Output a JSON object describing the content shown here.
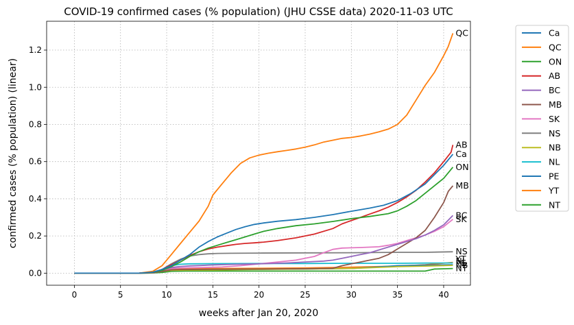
{
  "chart_data": {
    "type": "line",
    "title": "COVID-19 confirmed cases (% population) (JHU CSSE data) 2020-11-03 UTC",
    "xlabel": "weeks after Jan 20, 2020",
    "ylabel": "confirmed cases (% population) (linear)",
    "xlim": [
      -3,
      42.9
    ],
    "ylim": [
      -0.065,
      1.355
    ],
    "x_ticks": [
      0,
      5,
      10,
      15,
      20,
      25,
      30,
      35,
      40
    ],
    "y_ticks": [
      0.0,
      0.2,
      0.4,
      0.6,
      0.8,
      1.0,
      1.2
    ],
    "x_tick_labels": [
      "0",
      "5",
      "10",
      "15",
      "20",
      "25",
      "30",
      "35",
      "40"
    ],
    "y_tick_labels": [
      "0.0",
      "0.2",
      "0.4",
      "0.6",
      "0.8",
      "1.0",
      "1.2"
    ],
    "grid": true,
    "legend_position": "outside-right",
    "series": [
      {
        "name": "Ca",
        "color": "#1f77b4",
        "end_label": "Ca",
        "points": [
          [
            0,
            0
          ],
          [
            7,
            0
          ],
          [
            8.5,
            0.005
          ],
          [
            9.5,
            0.02
          ],
          [
            10.5,
            0.04
          ],
          [
            11.5,
            0.07
          ],
          [
            12.5,
            0.1
          ],
          [
            13.5,
            0.14
          ],
          [
            14.5,
            0.17
          ],
          [
            15.5,
            0.195
          ],
          [
            16.5,
            0.215
          ],
          [
            17.5,
            0.235
          ],
          [
            18.5,
            0.25
          ],
          [
            19.5,
            0.262
          ],
          [
            20.5,
            0.27
          ],
          [
            22,
            0.279
          ],
          [
            24,
            0.288
          ],
          [
            26,
            0.3
          ],
          [
            28,
            0.315
          ],
          [
            30,
            0.333
          ],
          [
            32,
            0.35
          ],
          [
            33.5,
            0.365
          ],
          [
            35,
            0.39
          ],
          [
            36.5,
            0.43
          ],
          [
            38,
            0.48
          ],
          [
            39,
            0.53
          ],
          [
            40,
            0.58
          ],
          [
            41,
            0.64
          ]
        ]
      },
      {
        "name": "QC",
        "color": "#ff7f0e",
        "end_label": "QC",
        "points": [
          [
            0,
            0
          ],
          [
            7,
            0
          ],
          [
            8.5,
            0.01
          ],
          [
            9.5,
            0.04
          ],
          [
            10.5,
            0.1
          ],
          [
            11.5,
            0.16
          ],
          [
            12.5,
            0.22
          ],
          [
            13.5,
            0.28
          ],
          [
            14.5,
            0.36
          ],
          [
            15,
            0.42
          ],
          [
            16,
            0.48
          ],
          [
            17,
            0.54
          ],
          [
            18,
            0.59
          ],
          [
            19,
            0.62
          ],
          [
            20,
            0.635
          ],
          [
            21,
            0.645
          ],
          [
            22,
            0.653
          ],
          [
            23,
            0.66
          ],
          [
            24,
            0.668
          ],
          [
            25,
            0.678
          ],
          [
            26,
            0.69
          ],
          [
            27,
            0.705
          ],
          [
            28,
            0.715
          ],
          [
            29,
            0.725
          ],
          [
            30,
            0.73
          ],
          [
            31,
            0.738
          ],
          [
            32,
            0.748
          ],
          [
            33,
            0.76
          ],
          [
            34,
            0.775
          ],
          [
            35,
            0.8
          ],
          [
            36,
            0.85
          ],
          [
            37,
            0.93
          ],
          [
            38,
            1.01
          ],
          [
            39,
            1.08
          ],
          [
            40,
            1.17
          ],
          [
            40.5,
            1.22
          ],
          [
            41,
            1.29
          ]
        ]
      },
      {
        "name": "ON",
        "color": "#2ca02c",
        "end_label": "ON",
        "points": [
          [
            0,
            0
          ],
          [
            7,
            0
          ],
          [
            8.5,
            0.004
          ],
          [
            9.5,
            0.015
          ],
          [
            10.5,
            0.035
          ],
          [
            11.5,
            0.06
          ],
          [
            12.5,
            0.09
          ],
          [
            13.5,
            0.115
          ],
          [
            14.5,
            0.135
          ],
          [
            15.5,
            0.15
          ],
          [
            16.5,
            0.165
          ],
          [
            17.5,
            0.18
          ],
          [
            18.5,
            0.195
          ],
          [
            19.5,
            0.21
          ],
          [
            20.5,
            0.225
          ],
          [
            22,
            0.24
          ],
          [
            24,
            0.255
          ],
          [
            26,
            0.265
          ],
          [
            28,
            0.278
          ],
          [
            30,
            0.293
          ],
          [
            32,
            0.305
          ],
          [
            34,
            0.32
          ],
          [
            35,
            0.335
          ],
          [
            36,
            0.36
          ],
          [
            37,
            0.39
          ],
          [
            38,
            0.43
          ],
          [
            39,
            0.47
          ],
          [
            40,
            0.51
          ],
          [
            41,
            0.57
          ]
        ]
      },
      {
        "name": "AB",
        "color": "#d62728",
        "end_label": "AB",
        "points": [
          [
            0,
            0
          ],
          [
            7,
            0
          ],
          [
            8.5,
            0.004
          ],
          [
            9.5,
            0.02
          ],
          [
            10.5,
            0.045
          ],
          [
            11.5,
            0.07
          ],
          [
            12.5,
            0.095
          ],
          [
            13.5,
            0.115
          ],
          [
            14.5,
            0.13
          ],
          [
            15.5,
            0.14
          ],
          [
            16.5,
            0.148
          ],
          [
            17.5,
            0.155
          ],
          [
            18.5,
            0.16
          ],
          [
            19.5,
            0.163
          ],
          [
            20.5,
            0.167
          ],
          [
            22,
            0.175
          ],
          [
            24,
            0.19
          ],
          [
            26,
            0.21
          ],
          [
            28,
            0.24
          ],
          [
            29,
            0.265
          ],
          [
            30,
            0.283
          ],
          [
            31,
            0.3
          ],
          [
            32,
            0.318
          ],
          [
            33,
            0.335
          ],
          [
            34,
            0.355
          ],
          [
            35,
            0.38
          ],
          [
            36,
            0.41
          ],
          [
            37,
            0.445
          ],
          [
            38,
            0.49
          ],
          [
            39,
            0.54
          ],
          [
            40,
            0.6
          ],
          [
            40.8,
            0.65
          ],
          [
            41,
            0.69
          ]
        ]
      },
      {
        "name": "BC",
        "color": "#9467bd",
        "end_label": "BC",
        "points": [
          [
            0,
            0
          ],
          [
            7,
            0
          ],
          [
            8.5,
            0.005
          ],
          [
            9.5,
            0.02
          ],
          [
            10.5,
            0.03
          ],
          [
            11.5,
            0.036
          ],
          [
            12.5,
            0.039
          ],
          [
            13.5,
            0.041
          ],
          [
            14.5,
            0.043
          ],
          [
            15.5,
            0.045
          ],
          [
            17,
            0.047
          ],
          [
            20,
            0.05
          ],
          [
            23,
            0.055
          ],
          [
            25,
            0.06
          ],
          [
            27,
            0.065
          ],
          [
            28,
            0.07
          ],
          [
            29,
            0.08
          ],
          [
            30,
            0.09
          ],
          [
            31,
            0.1
          ],
          [
            32,
            0.11
          ],
          [
            33,
            0.125
          ],
          [
            34,
            0.14
          ],
          [
            35,
            0.155
          ],
          [
            36,
            0.17
          ],
          [
            37,
            0.185
          ],
          [
            38,
            0.205
          ],
          [
            39,
            0.23
          ],
          [
            40,
            0.26
          ],
          [
            41,
            0.31
          ]
        ]
      },
      {
        "name": "MB",
        "color": "#8c564b",
        "end_label": "MB",
        "points": [
          [
            0,
            0
          ],
          [
            7,
            0
          ],
          [
            8.5,
            0.002
          ],
          [
            9.5,
            0.01
          ],
          [
            10.5,
            0.018
          ],
          [
            12,
            0.02
          ],
          [
            15,
            0.021
          ],
          [
            20,
            0.022
          ],
          [
            25,
            0.024
          ],
          [
            28,
            0.026
          ],
          [
            29,
            0.04
          ],
          [
            30,
            0.05
          ],
          [
            31,
            0.06
          ],
          [
            32,
            0.07
          ],
          [
            33,
            0.08
          ],
          [
            34,
            0.1
          ],
          [
            35,
            0.13
          ],
          [
            36,
            0.16
          ],
          [
            37,
            0.19
          ],
          [
            38,
            0.23
          ],
          [
            39,
            0.3
          ],
          [
            40,
            0.38
          ],
          [
            40.5,
            0.44
          ],
          [
            41,
            0.47
          ]
        ]
      },
      {
        "name": "SK",
        "color": "#e377c2",
        "end_label": "SK",
        "points": [
          [
            0,
            0
          ],
          [
            7,
            0
          ],
          [
            8.5,
            0.004
          ],
          [
            9.5,
            0.015
          ],
          [
            10.5,
            0.025
          ],
          [
            11.5,
            0.028
          ],
          [
            14,
            0.03
          ],
          [
            16,
            0.033
          ],
          [
            18,
            0.04
          ],
          [
            20,
            0.05
          ],
          [
            22,
            0.06
          ],
          [
            24,
            0.07
          ],
          [
            26,
            0.09
          ],
          [
            27,
            0.11
          ],
          [
            28,
            0.128
          ],
          [
            29,
            0.135
          ],
          [
            31,
            0.138
          ],
          [
            33,
            0.142
          ],
          [
            34,
            0.15
          ],
          [
            35,
            0.16
          ],
          [
            36,
            0.175
          ],
          [
            37,
            0.19
          ],
          [
            38,
            0.205
          ],
          [
            39,
            0.225
          ],
          [
            40,
            0.25
          ],
          [
            41,
            0.29
          ]
        ]
      },
      {
        "name": "NS",
        "color": "#7f7f7f",
        "end_label": "NS",
        "points": [
          [
            0,
            0
          ],
          [
            7,
            0
          ],
          [
            8.5,
            0.004
          ],
          [
            9.5,
            0.02
          ],
          [
            10.5,
            0.05
          ],
          [
            11.5,
            0.075
          ],
          [
            12.5,
            0.092
          ],
          [
            13.5,
            0.1
          ],
          [
            14.5,
            0.104
          ],
          [
            15.5,
            0.106
          ],
          [
            17,
            0.107
          ],
          [
            20,
            0.108
          ],
          [
            25,
            0.109
          ],
          [
            30,
            0.11
          ],
          [
            35,
            0.112
          ],
          [
            38,
            0.112
          ],
          [
            41,
            0.115
          ]
        ]
      },
      {
        "name": "NB",
        "color": "#bcbd22",
        "end_label": "NB",
        "points": [
          [
            0,
            0
          ],
          [
            7,
            0
          ],
          [
            8.5,
            0.002
          ],
          [
            9.5,
            0.01
          ],
          [
            10.5,
            0.015
          ],
          [
            12,
            0.016
          ],
          [
            15,
            0.017
          ],
          [
            20,
            0.02
          ],
          [
            25,
            0.022
          ],
          [
            30,
            0.025
          ],
          [
            35,
            0.035
          ],
          [
            38,
            0.038
          ],
          [
            41,
            0.042
          ]
        ]
      },
      {
        "name": "NL",
        "color": "#17becf",
        "end_label": "NL",
        "points": [
          [
            0,
            0
          ],
          [
            7,
            0
          ],
          [
            8.5,
            0.003
          ],
          [
            9.5,
            0.015
          ],
          [
            10.5,
            0.04
          ],
          [
            11.5,
            0.048
          ],
          [
            12.5,
            0.05
          ],
          [
            15,
            0.051
          ],
          [
            20,
            0.052
          ],
          [
            25,
            0.052
          ],
          [
            30,
            0.053
          ],
          [
            35,
            0.053
          ],
          [
            38,
            0.054
          ],
          [
            41,
            0.055
          ]
        ]
      },
      {
        "name": "PE",
        "color": "#1f77b4",
        "end_label": "PE",
        "points": [
          [
            0,
            0
          ],
          [
            7,
            0
          ],
          [
            8.5,
            0.001
          ],
          [
            9.5,
            0.01
          ],
          [
            10.5,
            0.015
          ],
          [
            12,
            0.017
          ],
          [
            15,
            0.019
          ],
          [
            20,
            0.021
          ],
          [
            25,
            0.022
          ],
          [
            30,
            0.025
          ],
          [
            35,
            0.04
          ],
          [
            38,
            0.043
          ],
          [
            41,
            0.045
          ]
        ]
      },
      {
        "name": "YT",
        "color": "#ff7f0e",
        "end_label": "YT",
        "points": [
          [
            0,
            0
          ],
          [
            7,
            0
          ],
          [
            8.5,
            0.001
          ],
          [
            9.5,
            0.01
          ],
          [
            10.5,
            0.02
          ],
          [
            12,
            0.024
          ],
          [
            15,
            0.025
          ],
          [
            20,
            0.026
          ],
          [
            25,
            0.028
          ],
          [
            30,
            0.032
          ],
          [
            35,
            0.038
          ],
          [
            38,
            0.045
          ],
          [
            41,
            0.058
          ]
        ]
      },
      {
        "name": "NT",
        "color": "#2ca02c",
        "end_label": "NT",
        "points": [
          [
            0,
            0
          ],
          [
            7,
            0
          ],
          [
            8.5,
            0.001
          ],
          [
            9.5,
            0.004
          ],
          [
            10.5,
            0.01
          ],
          [
            12,
            0.011
          ],
          [
            20,
            0.011
          ],
          [
            30,
            0.011
          ],
          [
            38,
            0.011
          ],
          [
            39,
            0.022
          ],
          [
            41,
            0.025
          ]
        ]
      }
    ]
  }
}
